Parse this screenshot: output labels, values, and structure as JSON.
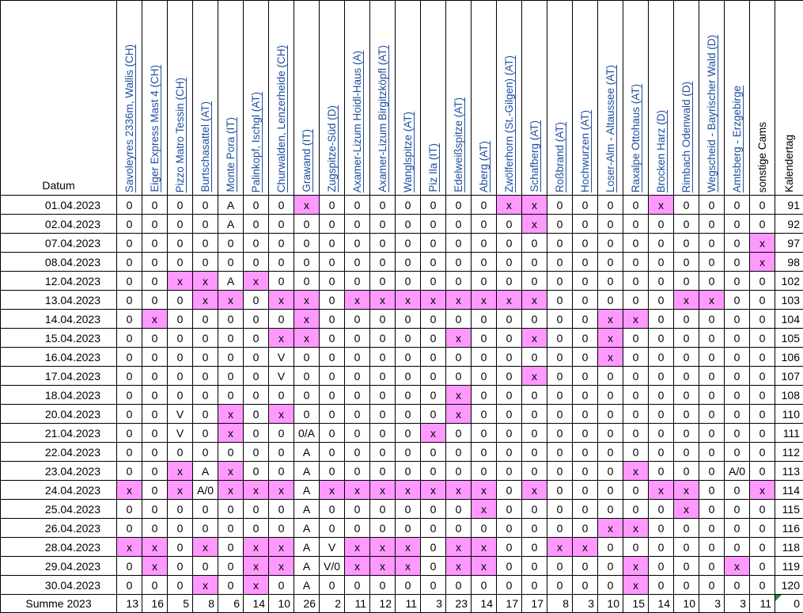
{
  "header": {
    "date_label": "Datum",
    "columns": [
      {
        "label": "Savoleyres  2336m, Wallis (CH)",
        "link": true
      },
      {
        "label": "Eiger Express Mast 4 (CH)",
        "link": true
      },
      {
        "label": "Pizzo Matro Tessin (CH)",
        "link": true
      },
      {
        "label": "Burtschasattel (AT)",
        "link": true
      },
      {
        "label": "Monte Pora (IT)",
        "link": true
      },
      {
        "label": "Palinkopf, Ischgl (AT)",
        "link": true
      },
      {
        "label": "Churwalden, Lenzerheide (CH)",
        "link": true
      },
      {
        "label": "Grawand (IT)",
        "link": true
      },
      {
        "label": "Zugspitze-Süd (D)",
        "link": true
      },
      {
        "label": "Axamer-Lizum Hoidl-Haus (A)",
        "link": true
      },
      {
        "label": "Axamer-Lizum Birgitzköpfl (AT)",
        "link": true
      },
      {
        "label": "Wanglspitze (AT)",
        "link": true
      },
      {
        "label": "Piz Ila (IT)",
        "link": true
      },
      {
        "label": "Edelweißspitze (AT)",
        "link": true
      },
      {
        "label": "Aberg (AT)",
        "link": true
      },
      {
        "label": "Zwölferhorn (St.-Gilgen) (AT)",
        "link": true
      },
      {
        "label": "Schafberg (AT)",
        "link": true
      },
      {
        "label": "Roßbrand (AT)",
        "link": true
      },
      {
        "label": "Hochwurzen (AT)",
        "link": true
      },
      {
        "label": "Loser-Alm - Altaussee (AT)",
        "link": true
      },
      {
        "label": "Raxalpe Ottohaus (AT)",
        "link": true
      },
      {
        "label": "Brocken Harz (D)",
        "link": true
      },
      {
        "label": "Rimbach Odenwald (D)",
        "link": true
      },
      {
        "label": "Wegscheid - Bayrischer Wald (D)",
        "link": true
      },
      {
        "label": "Amtsberg - Erzgebirge",
        "link": true
      },
      {
        "label": "sonstige Cams",
        "link": false
      },
      {
        "label": "Kalendertag",
        "link": false
      }
    ]
  },
  "rows": [
    {
      "date": "01.04.2023",
      "cells": [
        "0",
        "0",
        "0",
        "0",
        "A",
        "0",
        "0",
        "x",
        "0",
        "0",
        "0",
        "0",
        "0",
        "0",
        "0",
        "x",
        "x",
        "0",
        "0",
        "0",
        "0",
        "x",
        "0",
        "0",
        "0",
        "0"
      ],
      "day": "91"
    },
    {
      "date": "02.04.2023",
      "cells": [
        "0",
        "0",
        "0",
        "0",
        "A",
        "0",
        "0",
        "0",
        "0",
        "0",
        "0",
        "0",
        "0",
        "0",
        "0",
        "0",
        "x",
        "0",
        "0",
        "0",
        "0",
        "0",
        "0",
        "0",
        "0",
        "0"
      ],
      "day": "92"
    },
    {
      "date": "07.04.2023",
      "cells": [
        "0",
        "0",
        "0",
        "0",
        "0",
        "0",
        "0",
        "0",
        "0",
        "0",
        "0",
        "0",
        "0",
        "0",
        "0",
        "0",
        "0",
        "0",
        "0",
        "0",
        "0",
        "0",
        "0",
        "0",
        "0",
        "x"
      ],
      "day": "97"
    },
    {
      "date": "08.04.2023",
      "cells": [
        "0",
        "0",
        "0",
        "0",
        "0",
        "0",
        "0",
        "0",
        "0",
        "0",
        "0",
        "0",
        "0",
        "0",
        "0",
        "0",
        "0",
        "0",
        "0",
        "0",
        "0",
        "0",
        "0",
        "0",
        "0",
        "x"
      ],
      "day": "98"
    },
    {
      "date": "12.04.2023",
      "cells": [
        "0",
        "0",
        "x",
        "x",
        "A",
        "x",
        "0",
        "0",
        "0",
        "0",
        "0",
        "0",
        "0",
        "0",
        "0",
        "0",
        "0",
        "0",
        "0",
        "0",
        "0",
        "0",
        "0",
        "0",
        "0",
        "0"
      ],
      "day": "102"
    },
    {
      "date": "13.04.2023",
      "cells": [
        "0",
        "0",
        "0",
        "x",
        "x",
        "0",
        "x",
        "x",
        "0",
        "x",
        "x",
        "x",
        "x",
        "x",
        "x",
        "x",
        "x",
        "0",
        "0",
        "0",
        "0",
        "0",
        "x",
        "x",
        "0",
        "0"
      ],
      "day": "103"
    },
    {
      "date": "14.04.2023",
      "cells": [
        "0",
        "x",
        "0",
        "0",
        "0",
        "0",
        "0",
        "x",
        "0",
        "0",
        "0",
        "0",
        "0",
        "0",
        "0",
        "0",
        "0",
        "0",
        "0",
        "x",
        "x",
        "0",
        "0",
        "0",
        "0",
        "0"
      ],
      "day": "104"
    },
    {
      "date": "15.04.2023",
      "cells": [
        "0",
        "0",
        "0",
        "0",
        "0",
        "0",
        "x",
        "x",
        "0",
        "0",
        "0",
        "0",
        "0",
        "x",
        "0",
        "0",
        "x",
        "0",
        "0",
        "x",
        "0",
        "0",
        "0",
        "0",
        "0",
        "0"
      ],
      "day": "105"
    },
    {
      "date": "16.04.2023",
      "cells": [
        "0",
        "0",
        "0",
        "0",
        "0",
        "0",
        "V",
        "0",
        "0",
        "0",
        "0",
        "0",
        "0",
        "0",
        "0",
        "0",
        "0",
        "0",
        "0",
        "x",
        "0",
        "0",
        "0",
        "0",
        "0",
        "0"
      ],
      "day": "106"
    },
    {
      "date": "17.04.2023",
      "cells": [
        "0",
        "0",
        "0",
        "0",
        "0",
        "0",
        "V",
        "0",
        "0",
        "0",
        "0",
        "0",
        "0",
        "0",
        "0",
        "0",
        "x",
        "0",
        "0",
        "0",
        "0",
        "0",
        "0",
        "0",
        "0",
        "0"
      ],
      "day": "107"
    },
    {
      "date": "18.04.2023",
      "cells": [
        "0",
        "0",
        "0",
        "0",
        "0",
        "0",
        "0",
        "0",
        "0",
        "0",
        "0",
        "0",
        "0",
        "x",
        "0",
        "0",
        "0",
        "0",
        "0",
        "0",
        "0",
        "0",
        "0",
        "0",
        "0",
        "0"
      ],
      "day": "108"
    },
    {
      "date": "20.04.2023",
      "cells": [
        "0",
        "0",
        "V",
        "0",
        "x",
        "0",
        "x",
        "0",
        "0",
        "0",
        "0",
        "0",
        "0",
        "x",
        "0",
        "0",
        "0",
        "0",
        "0",
        "0",
        "0",
        "0",
        "0",
        "0",
        "0",
        "0"
      ],
      "day": "110"
    },
    {
      "date": "21.04.2023",
      "cells": [
        "0",
        "0",
        "V",
        "0",
        "x",
        "0",
        "0",
        "0/A",
        "0",
        "0",
        "0",
        "0",
        "x",
        "0",
        "0",
        "0",
        "0",
        "0",
        "0",
        "0",
        "0",
        "0",
        "0",
        "0",
        "0",
        "0"
      ],
      "day": "111"
    },
    {
      "date": "22.04.2023",
      "cells": [
        "0",
        "0",
        "0",
        "0",
        "0",
        "0",
        "0",
        "A",
        "0",
        "0",
        "0",
        "0",
        "0",
        "0",
        "0",
        "0",
        "0",
        "0",
        "0",
        "0",
        "0",
        "0",
        "0",
        "0",
        "0",
        "0"
      ],
      "day": "112"
    },
    {
      "date": "23.04.2023",
      "cells": [
        "0",
        "0",
        "x",
        "A",
        "x",
        "0",
        "0",
        "A",
        "0",
        "0",
        "0",
        "0",
        "0",
        "0",
        "0",
        "0",
        "0",
        "0",
        "0",
        "0",
        "x",
        "0",
        "0",
        "0",
        "A/0",
        "0"
      ],
      "day": "113"
    },
    {
      "date": "24.04.2023",
      "cells": [
        "x",
        "0",
        "x",
        "A/0",
        "x",
        "x",
        "x",
        "A",
        "x",
        "x",
        "x",
        "x",
        "x",
        "x",
        "x",
        "0",
        "x",
        "0",
        "0",
        "0",
        "0",
        "x",
        "x",
        "0",
        "0",
        "x"
      ],
      "day": "114"
    },
    {
      "date": "25.04.2023",
      "cells": [
        "0",
        "0",
        "0",
        "0",
        "0",
        "0",
        "0",
        "A",
        "0",
        "0",
        "0",
        "0",
        "0",
        "0",
        "x",
        "0",
        "0",
        "0",
        "0",
        "0",
        "0",
        "0",
        "x",
        "0",
        "0",
        "0"
      ],
      "day": "115"
    },
    {
      "date": "26.04.2023",
      "cells": [
        "0",
        "0",
        "0",
        "0",
        "0",
        "0",
        "0",
        "A",
        "0",
        "0",
        "0",
        "0",
        "0",
        "0",
        "0",
        "0",
        "0",
        "0",
        "0",
        "x",
        "x",
        "0",
        "0",
        "0",
        "0",
        "0"
      ],
      "day": "116"
    },
    {
      "date": "28.04.2023",
      "cells": [
        "x",
        "x",
        "0",
        "x",
        "0",
        "x",
        "x",
        "A",
        "V",
        "x",
        "x",
        "x",
        "0",
        "x",
        "x",
        "0",
        "0",
        "x",
        "x",
        "0",
        "0",
        "0",
        "0",
        "0",
        "0",
        "0"
      ],
      "day": "118"
    },
    {
      "date": "29.04.2023",
      "cells": [
        "0",
        "x",
        "0",
        "0",
        "0",
        "x",
        "x",
        "A",
        "V/0",
        "x",
        "x",
        "x",
        "0",
        "x",
        "x",
        "0",
        "0",
        "0",
        "0",
        "0",
        "x",
        "0",
        "0",
        "0",
        "x",
        "0"
      ],
      "day": "119"
    },
    {
      "date": "30.04.2023",
      "cells": [
        "0",
        "0",
        "0",
        "x",
        "0",
        "x",
        "0",
        "A",
        "0",
        "0",
        "0",
        "0",
        "0",
        "0",
        "0",
        "0",
        "0",
        "0",
        "0",
        "0",
        "x",
        "0",
        "0",
        "0",
        "0",
        "0"
      ],
      "day": "120"
    }
  ],
  "footer": {
    "label": "Summe 2023",
    "sums": [
      "13",
      "16",
      "5",
      "8",
      "6",
      "14",
      "10",
      "26",
      "2",
      "11",
      "12",
      "11",
      "3",
      "23",
      "14",
      "17",
      "17",
      "8",
      "3",
      "10",
      "15",
      "14",
      "10",
      "3",
      "3",
      "11"
    ],
    "day": "0"
  },
  "colors": {
    "highlight": "#ff99ff",
    "link": "#1f4e9e",
    "corner_marker": "#1e8a3a"
  }
}
